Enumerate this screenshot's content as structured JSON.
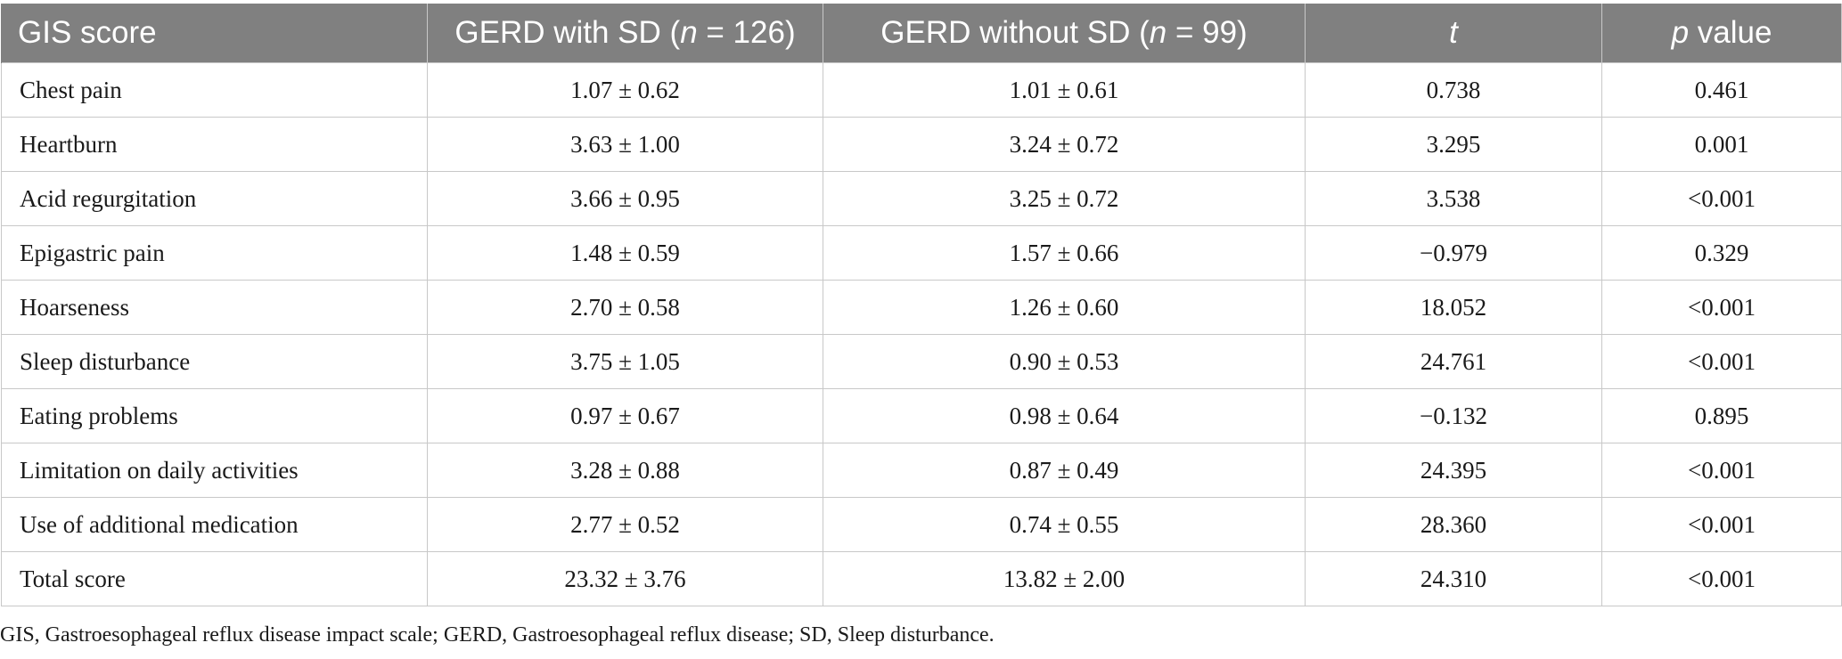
{
  "table": {
    "headers": [
      {
        "prefix": "GIS score",
        "italic": "",
        "suffix": ""
      },
      {
        "prefix": "GERD with SD (",
        "italic": "n",
        "suffix": " = 126)"
      },
      {
        "prefix": "GERD without SD (",
        "italic": "n",
        "suffix": " = 99)"
      },
      {
        "prefix": "",
        "italic": "t",
        "suffix": ""
      },
      {
        "prefix": "",
        "italic": "p",
        "suffix": " value"
      }
    ],
    "rows": [
      {
        "label": "Chest pain",
        "with_sd": "1.07 ± 0.62",
        "without_sd": "1.01 ± 0.61",
        "t": "0.738",
        "p": "0.461"
      },
      {
        "label": "Heartburn",
        "with_sd": "3.63 ± 1.00",
        "without_sd": "3.24 ± 0.72",
        "t": "3.295",
        "p": "0.001"
      },
      {
        "label": "Acid regurgitation",
        "with_sd": "3.66 ± 0.95",
        "without_sd": "3.25 ± 0.72",
        "t": "3.538",
        "p": "<0.001"
      },
      {
        "label": "Epigastric pain",
        "with_sd": "1.48 ± 0.59",
        "without_sd": "1.57 ± 0.66",
        "t": "−0.979",
        "p": "0.329"
      },
      {
        "label": "Hoarseness",
        "with_sd": "2.70 ± 0.58",
        "without_sd": "1.26 ± 0.60",
        "t": "18.052",
        "p": "<0.001"
      },
      {
        "label": "Sleep disturbance",
        "with_sd": "3.75 ± 1.05",
        "without_sd": "0.90 ± 0.53",
        "t": "24.761",
        "p": "<0.001"
      },
      {
        "label": "Eating problems",
        "with_sd": "0.97 ± 0.67",
        "without_sd": "0.98 ± 0.64",
        "t": "−0.132",
        "p": "0.895"
      },
      {
        "label": "Limitation on daily activities",
        "with_sd": "3.28 ± 0.88",
        "without_sd": "0.87 ± 0.49",
        "t": "24.395",
        "p": "<0.001"
      },
      {
        "label": "Use of additional medication",
        "with_sd": "2.77 ± 0.52",
        "without_sd": "0.74 ± 0.55",
        "t": "28.360",
        "p": "<0.001"
      },
      {
        "label": "Total score",
        "with_sd": "23.32 ± 3.76",
        "without_sd": "13.82 ± 2.00",
        "t": "24.310",
        "p": "<0.001"
      }
    ]
  },
  "footnote": "GIS, Gastroesophageal reflux disease impact scale; GERD, Gastroesophageal reflux disease; SD, Sleep disturbance.",
  "colors": {
    "header_bg": "#808080",
    "header_text": "#ffffff",
    "border": "#c8c8c8"
  }
}
